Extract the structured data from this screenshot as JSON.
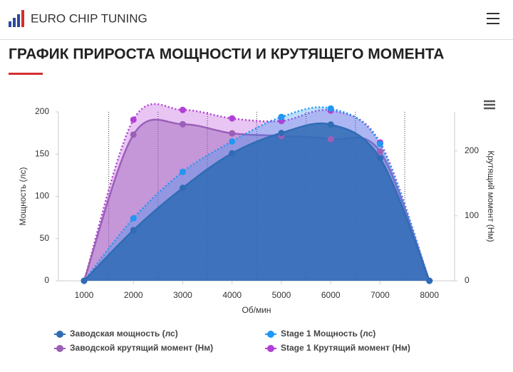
{
  "header": {
    "logo": "EURO CHIP TUNING"
  },
  "page_title": "ГРАФИК ПРИРОСТА МОЩНОСТИ И КРУТЯЩЕГО МОМЕНТА",
  "chart_data": {
    "type": "area",
    "x_label": "Об/мин",
    "y_label": "Мощность (лс)",
    "y2_label": "Крутящий момент (Нм)",
    "x": [
      1000,
      2000,
      3000,
      4000,
      5000,
      6000,
      7000,
      8000
    ],
    "xlim": [
      480,
      8510
    ],
    "xticks": [
      1000,
      2000,
      3000,
      4000,
      5000,
      6000,
      7000,
      8000
    ],
    "xminor": [
      1500,
      2500,
      3500,
      4500,
      5500,
      6500,
      7500
    ],
    "ylim": [
      0,
      200
    ],
    "yticks": [
      0,
      50,
      100,
      150,
      200
    ],
    "y2lim": [
      0,
      260
    ],
    "y2ticks": [
      0,
      100,
      200
    ],
    "series": [
      {
        "name": "Заводская мощность (лс)",
        "color": "#2f6cb5",
        "values": [
          0,
          60,
          110,
          151,
          175,
          185,
          145,
          0
        ]
      },
      {
        "name": "Stage 1 Мощность (лс)",
        "color": "#2196f3",
        "values": [
          0,
          74,
          129,
          165,
          194,
          204,
          162,
          0
        ]
      },
      {
        "name": "Заводской крутящий момент (Нм)",
        "color": "#9b5fb8",
        "axis": "y2",
        "values": [
          0,
          225,
          241,
          227,
          223,
          218,
          199,
          0
        ]
      },
      {
        "name": "Stage 1 Крутящий момент (Нм)",
        "color": "#b23fd6",
        "axis": "y2",
        "values": [
          0,
          248,
          263,
          250,
          246,
          262,
          213,
          0
        ]
      }
    ]
  }
}
